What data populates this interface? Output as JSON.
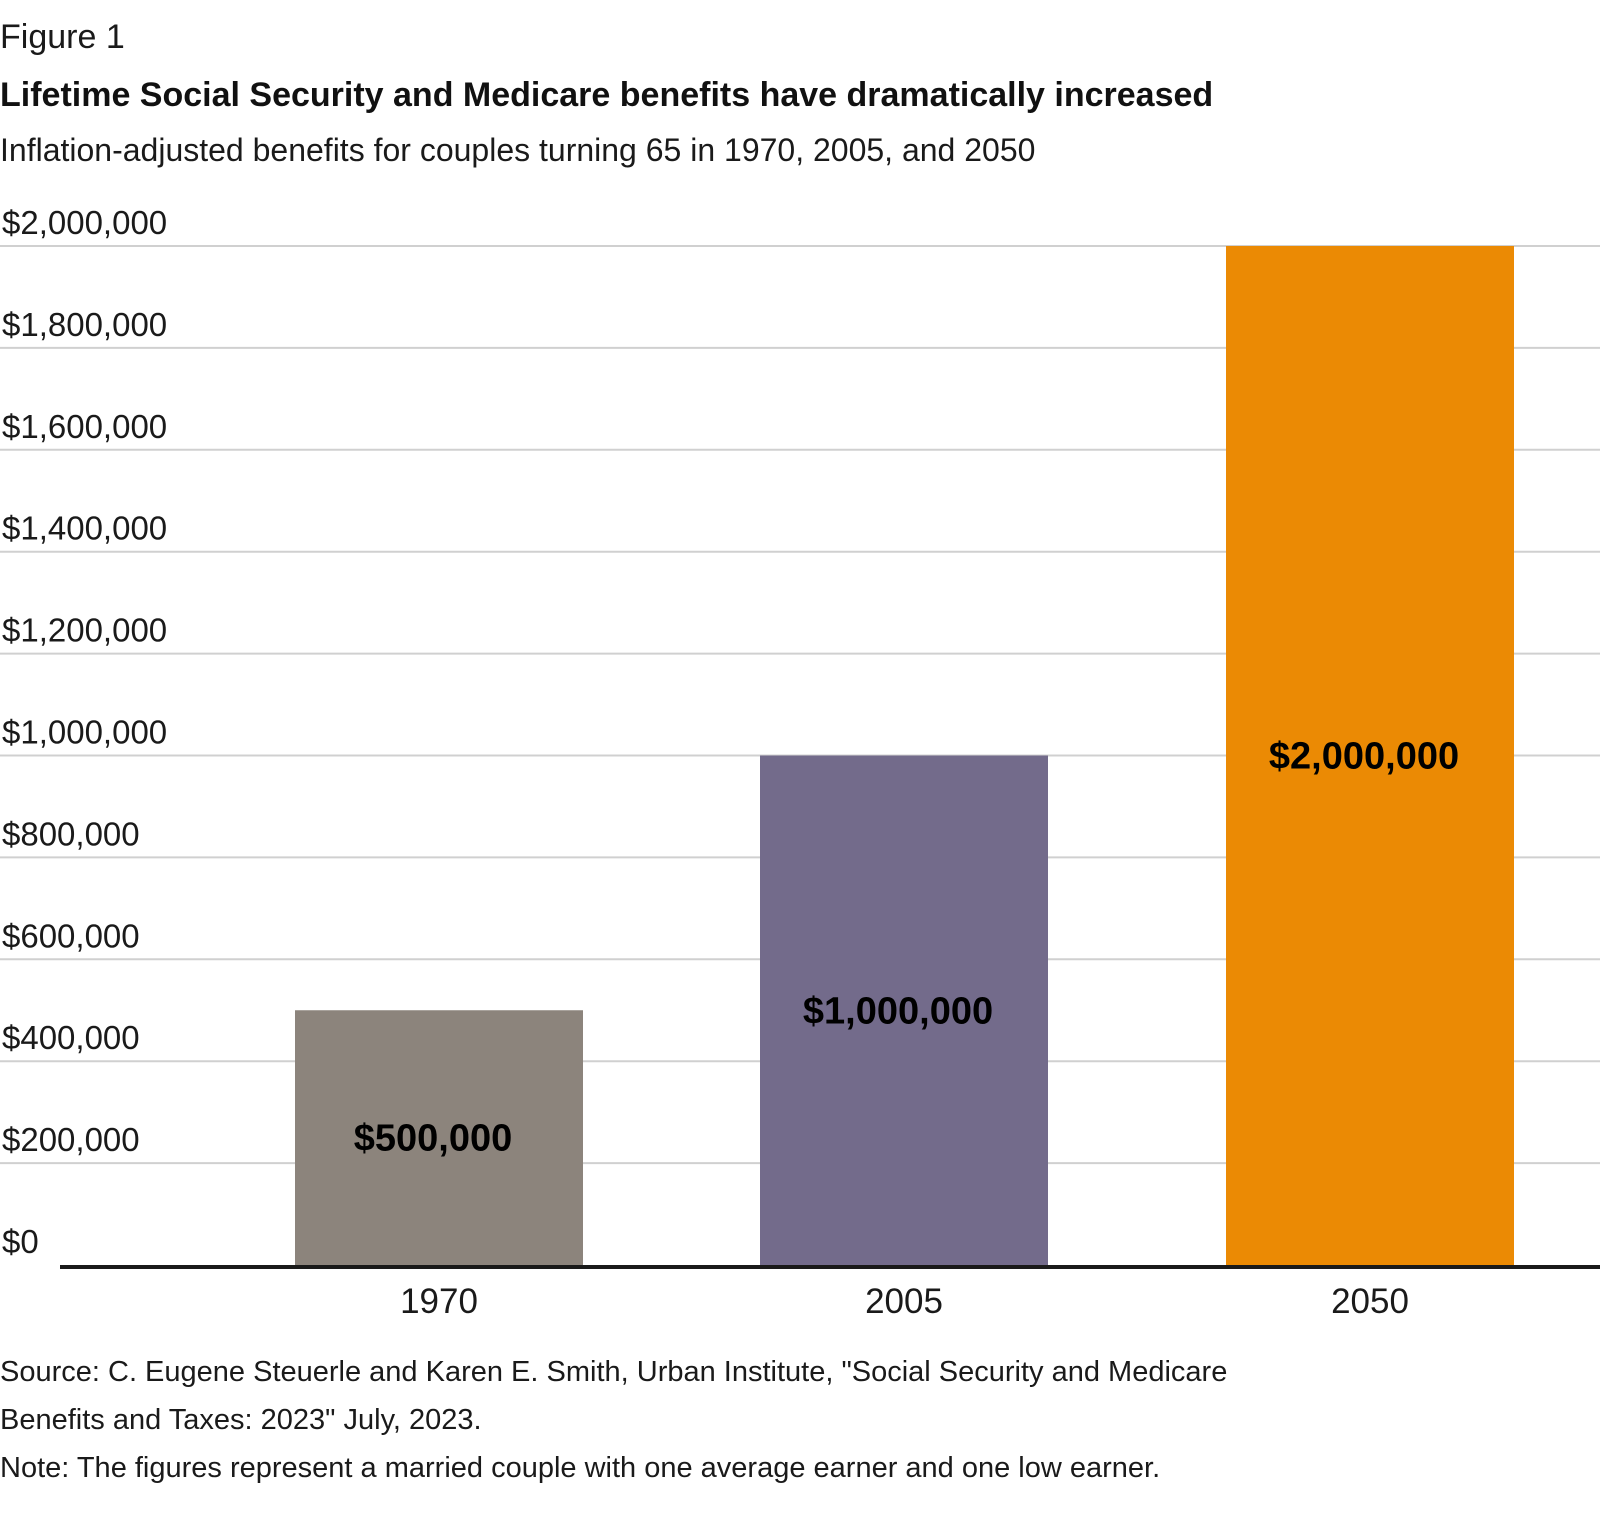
{
  "figure_label": "Figure 1",
  "chart_data": {
    "type": "bar",
    "title": "Lifetime Social Security and Medicare benefits have dramatically increased",
    "subtitle": "Inflation-adjusted benefits for couples turning 65 in 1970, 2005, and 2050",
    "categories": [
      "1970",
      "2005",
      "2050"
    ],
    "values": [
      500000,
      1000000,
      2000000
    ],
    "data_labels": [
      "$500,000",
      "$1,000,000",
      "$2,000,000"
    ],
    "colors": [
      "#8c847c",
      "#736b8b",
      "#eb8a04"
    ],
    "ylim": [
      0,
      2000000
    ],
    "y_ticks": [
      0,
      200000,
      400000,
      600000,
      800000,
      1000000,
      1200000,
      1400000,
      1600000,
      1800000,
      2000000
    ],
    "y_tick_labels": [
      "$0",
      "$200,000",
      "$400,000",
      "$600,000",
      "$800,000",
      "$1,000,000",
      "$1,200,000",
      "$1,400,000",
      "$1,600,000",
      "$1,800,000",
      "$2,000,000"
    ],
    "xlabel": "",
    "ylabel": "",
    "grid": true,
    "legend": "none"
  },
  "source": "Source: C. Eugene Steuerle and Karen E. Smith, Urban Institute, \"Social Security and Medicare Benefits and Taxes: 2023\" July, 2023.",
  "note": "Note: The figures represent a married couple with one average earner and one low earner."
}
